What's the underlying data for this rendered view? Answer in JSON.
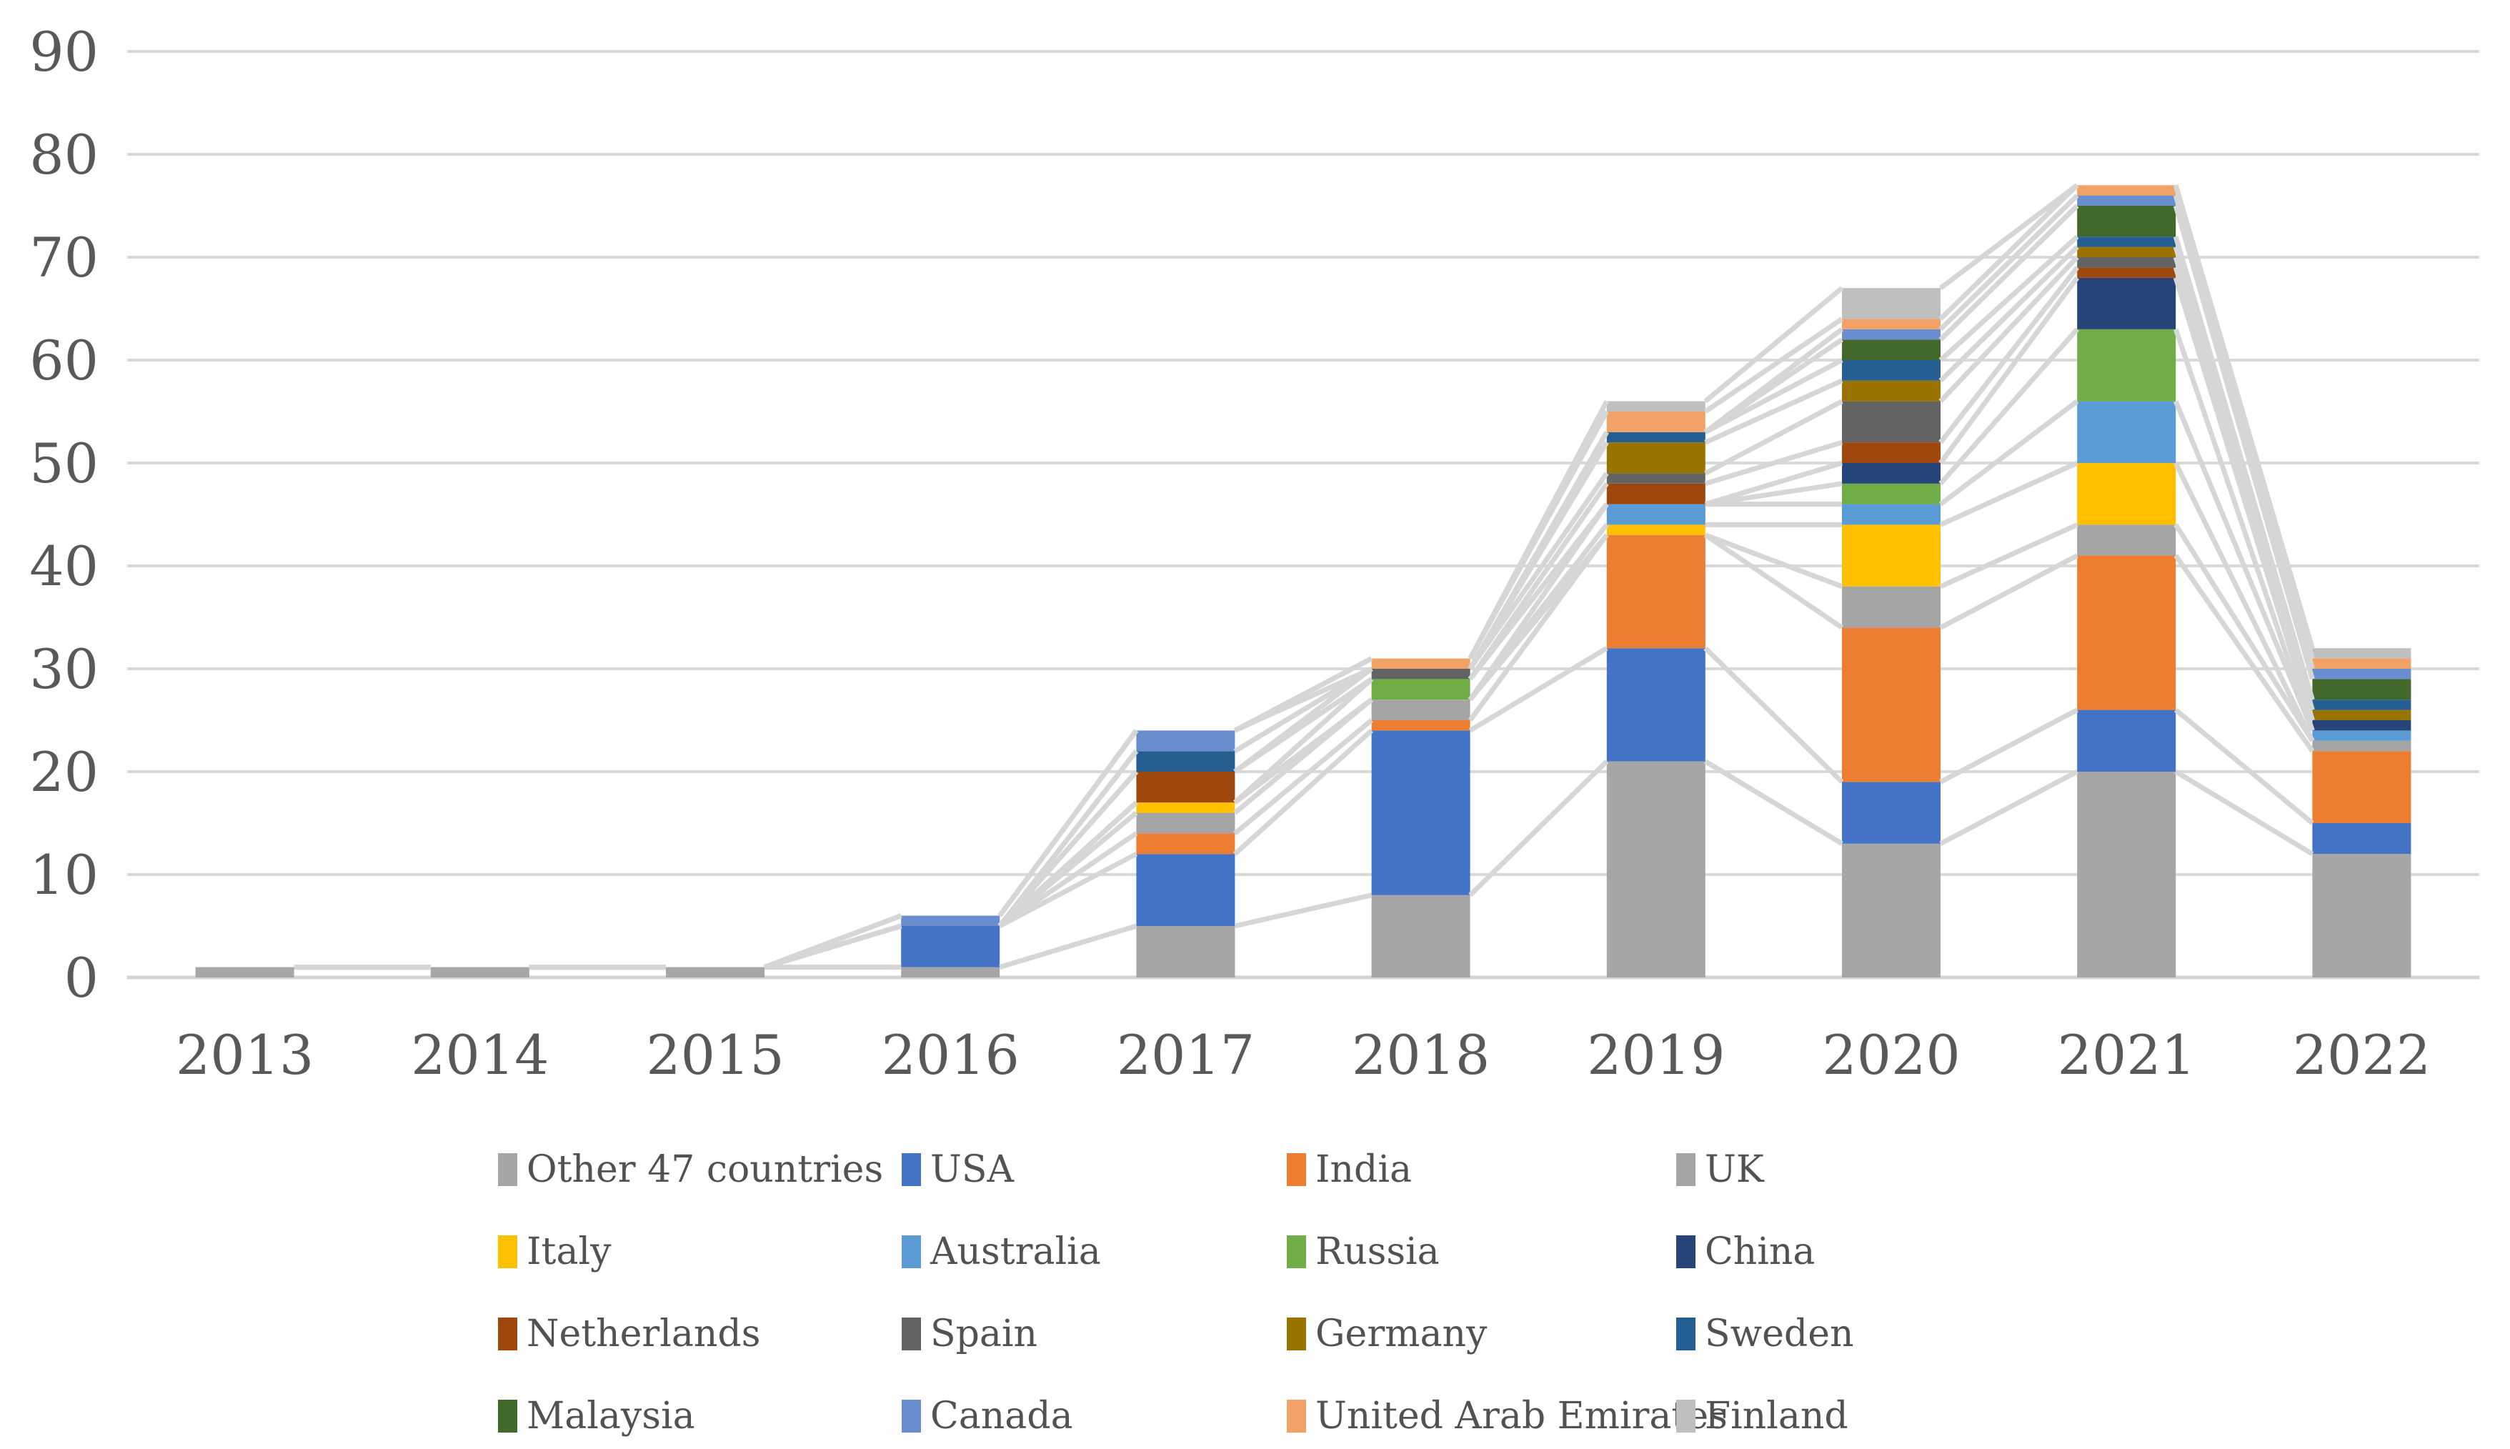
{
  "figure": {
    "background": "#ffffff",
    "gridline_color": "#d9d9d9",
    "axis_line_color": "#d3d3d3",
    "connector_line_color": "#d6d6d6",
    "axis_label_color": "#595959",
    "legend_text_color": "#525252"
  },
  "chart_data": {
    "type": "bar",
    "subtype": "stacked-column-with-series-lines",
    "title": "",
    "xlabel": "",
    "ylabel": "",
    "categories": [
      "2013",
      "2014",
      "2015",
      "2016",
      "2017",
      "2018",
      "2019",
      "2020",
      "2021",
      "2022"
    ],
    "y_axis": {
      "min": 0,
      "max": 90,
      "step": 10,
      "tick_labels": [
        "0",
        "10",
        "20",
        "30",
        "40",
        "50",
        "60",
        "70",
        "80",
        "90"
      ]
    },
    "grid": true,
    "legend_position": "bottom",
    "legend_columns": 4,
    "series": [
      {
        "name": "Other 47 countries",
        "color": "#a6a6a6",
        "values": [
          1,
          1,
          1,
          1,
          5,
          8,
          21,
          13,
          20,
          12
        ]
      },
      {
        "name": "USA",
        "color": "#4472c4",
        "values": [
          0,
          0,
          0,
          4,
          7,
          16,
          11,
          6,
          6,
          3
        ]
      },
      {
        "name": "India",
        "color": "#ed7d31",
        "values": [
          0,
          0,
          0,
          0,
          2,
          1,
          11,
          15,
          15,
          7
        ]
      },
      {
        "name": "UK",
        "color": "#a5a5a5",
        "values": [
          0,
          0,
          0,
          0,
          2,
          2,
          0,
          4,
          3,
          1
        ]
      },
      {
        "name": "Italy",
        "color": "#ffc000",
        "values": [
          0,
          0,
          0,
          0,
          1,
          0,
          1,
          6,
          6,
          0
        ]
      },
      {
        "name": "Australia",
        "color": "#5b9bd5",
        "values": [
          0,
          0,
          0,
          0,
          0,
          0,
          2,
          2,
          6,
          1
        ]
      },
      {
        "name": "Russia",
        "color": "#70ad47",
        "values": [
          0,
          0,
          0,
          0,
          0,
          2,
          0,
          2,
          7,
          0
        ]
      },
      {
        "name": "China",
        "color": "#264478",
        "values": [
          0,
          0,
          0,
          0,
          0,
          0,
          0,
          2,
          5,
          1
        ]
      },
      {
        "name": "Netherlands",
        "color": "#9e480e",
        "values": [
          0,
          0,
          0,
          0,
          3,
          0,
          2,
          2,
          1,
          0
        ]
      },
      {
        "name": "Spain",
        "color": "#636363",
        "values": [
          0,
          0,
          0,
          0,
          0,
          1,
          1,
          4,
          1,
          0
        ]
      },
      {
        "name": "Germany",
        "color": "#997300",
        "values": [
          0,
          0,
          0,
          0,
          0,
          0,
          3,
          2,
          1,
          1
        ]
      },
      {
        "name": "Sweden",
        "color": "#255e91",
        "values": [
          0,
          0,
          0,
          0,
          2,
          0,
          1,
          2,
          1,
          1
        ]
      },
      {
        "name": "Malaysia",
        "color": "#43682b",
        "values": [
          0,
          0,
          0,
          0,
          0,
          0,
          0,
          2,
          3,
          2
        ]
      },
      {
        "name": "Canada",
        "color": "#698ed0",
        "values": [
          0,
          0,
          0,
          1,
          2,
          0,
          0,
          1,
          1,
          1
        ]
      },
      {
        "name": "United Arab Emirates",
        "color": "#f2a266",
        "values": [
          0,
          0,
          0,
          0,
          0,
          1,
          2,
          1,
          1,
          1
        ]
      },
      {
        "name": "Finland",
        "color": "#bfbfbf",
        "values": [
          0,
          0,
          0,
          0,
          0,
          0,
          1,
          3,
          0,
          1
        ]
      }
    ],
    "totals_by_year": [
      1,
      1,
      1,
      6,
      24,
      31,
      56,
      67,
      77,
      32
    ]
  }
}
